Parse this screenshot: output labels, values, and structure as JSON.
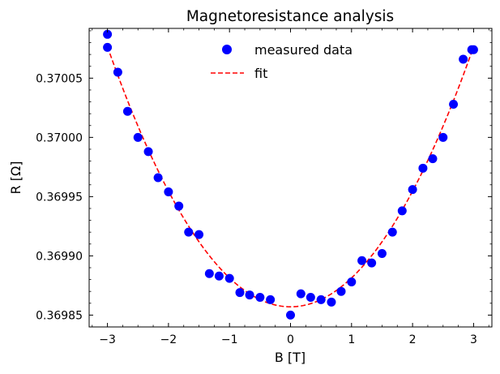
{
  "chart_data": {
    "type": "scatter",
    "title": "Magnetoresistance analysis",
    "xlabel": "B [T]",
    "ylabel": "R [Ω]",
    "xlim": [
      -3.3,
      3.3
    ],
    "ylim": [
      0.36984,
      0.370092
    ],
    "xticks": [
      -3,
      -2,
      -1,
      0,
      1,
      2,
      3
    ],
    "xtick_labels": [
      "−3",
      "−2",
      "−1",
      "0",
      "1",
      "2",
      "3"
    ],
    "yticks": [
      0.36985,
      0.3699,
      0.36995,
      0.37,
      0.37005
    ],
    "ytick_labels": [
      "0.36985",
      "0.36990",
      "0.36995",
      "0.37000",
      "0.37005"
    ],
    "grid": false,
    "legend_position": "top-center",
    "series": [
      {
        "name": "measured data",
        "kind": "scatter",
        "color": "#0000ff",
        "points": [
          [
            -3.0,
            0.370087
          ],
          [
            -3.0,
            0.370076
          ],
          [
            -2.83,
            0.370055
          ],
          [
            -2.67,
            0.370022
          ],
          [
            -2.5,
            0.37
          ],
          [
            -2.33,
            0.369988
          ],
          [
            -2.17,
            0.369966
          ],
          [
            -2.0,
            0.369954
          ],
          [
            -1.83,
            0.369942
          ],
          [
            -1.67,
            0.36992
          ],
          [
            -1.5,
            0.369918
          ],
          [
            -1.33,
            0.369885
          ],
          [
            -1.17,
            0.369883
          ],
          [
            -1.0,
            0.369881
          ],
          [
            -0.83,
            0.369869
          ],
          [
            -0.67,
            0.369867
          ],
          [
            -0.5,
            0.369865
          ],
          [
            -0.33,
            0.369863
          ],
          [
            0.0,
            0.36985
          ],
          [
            0.17,
            0.369868
          ],
          [
            0.33,
            0.369865
          ],
          [
            0.5,
            0.369863
          ],
          [
            0.67,
            0.369861
          ],
          [
            0.83,
            0.36987
          ],
          [
            1.0,
            0.369878
          ],
          [
            1.17,
            0.369896
          ],
          [
            1.33,
            0.369894
          ],
          [
            1.5,
            0.369902
          ],
          [
            1.67,
            0.36992
          ],
          [
            1.83,
            0.369938
          ],
          [
            2.0,
            0.369956
          ],
          [
            2.17,
            0.369974
          ],
          [
            2.33,
            0.369982
          ],
          [
            2.5,
            0.37
          ],
          [
            2.67,
            0.370028
          ],
          [
            2.83,
            0.370066
          ],
          [
            2.97,
            0.370074
          ],
          [
            3.0,
            0.370074
          ]
        ]
      },
      {
        "name": "fit",
        "kind": "line",
        "color": "#ff0000",
        "dash": "dashed",
        "model": "quadratic",
        "center_x": 0.0,
        "center_y": 0.369857,
        "curvature": 2.44e-05
      }
    ]
  }
}
